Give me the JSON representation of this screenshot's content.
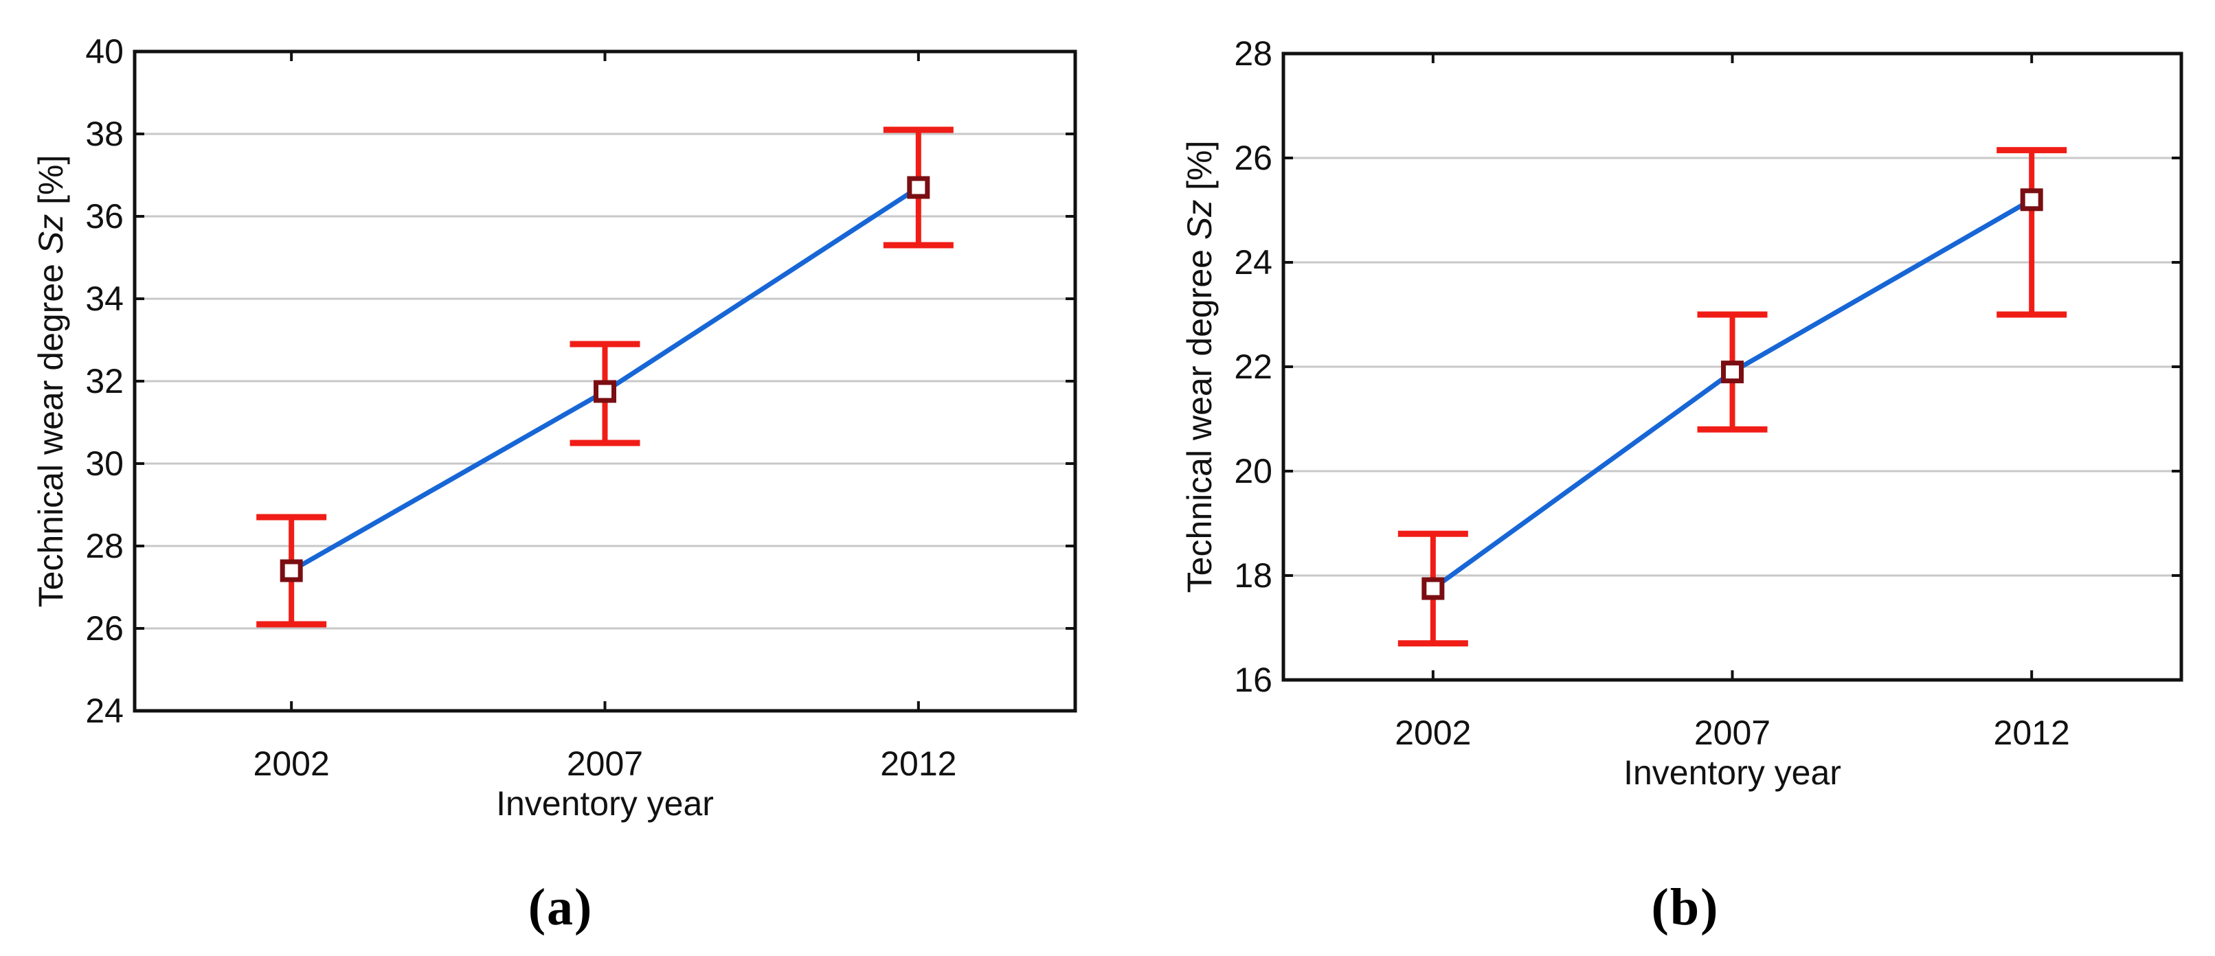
{
  "figure": {
    "background": "#ffffff"
  },
  "styles": {
    "line_color": "#1766d6",
    "error_color": "#f01d17",
    "marker_edge_color": "#7a0e12",
    "marker_fill_color": "#ffffff",
    "grid_color": "#c8c8c8",
    "axis_color": "#111111",
    "marker_shape": "square-open"
  },
  "chart_data": [
    {
      "type": "line",
      "panel_label": "(a)",
      "title": "",
      "xlabel": "Inventory year",
      "ylabel": "Technical wear degree Sz [%]",
      "ylabel_parts": [
        "Technical wear degree ",
        "Sz",
        " [%]"
      ],
      "categories": [
        "2002",
        "2007",
        "2012"
      ],
      "series": [
        {
          "name": "Technical wear degree Sz",
          "values": [
            27.4,
            31.75,
            36.7
          ],
          "error_low": [
            26.1,
            30.5,
            35.3
          ],
          "error_high": [
            28.7,
            32.9,
            38.1
          ]
        }
      ],
      "ylim": [
        24,
        40
      ],
      "yticks": [
        24,
        26,
        28,
        30,
        32,
        34,
        36,
        38,
        40
      ],
      "grid": true,
      "legend": "none",
      "error_bars": true
    },
    {
      "type": "line",
      "panel_label": "(b)",
      "title": "",
      "xlabel": "Inventory year",
      "ylabel": "Technical wear degree Sz [%]",
      "ylabel_parts": [
        "Technical wear degree ",
        "Sz",
        " [%]"
      ],
      "categories": [
        "2002",
        "2007",
        "2012"
      ],
      "series": [
        {
          "name": "Technical wear degree Sz",
          "values": [
            17.75,
            21.9,
            25.2
          ],
          "error_low": [
            16.7,
            20.8,
            23.0
          ],
          "error_high": [
            18.8,
            23.0,
            26.15
          ]
        }
      ],
      "ylim": [
        16,
        28
      ],
      "yticks": [
        16,
        18,
        20,
        22,
        24,
        26,
        28
      ],
      "grid": true,
      "legend": "none",
      "error_bars": true
    }
  ]
}
